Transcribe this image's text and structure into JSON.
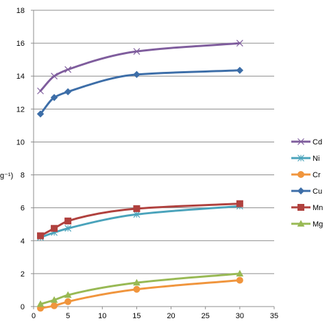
{
  "chart_data": {
    "type": "line",
    "x_ticks": [
      "0",
      "5",
      "10",
      "15",
      "20",
      "25",
      "30",
      "35"
    ],
    "y_ticks": [
      "0",
      "2",
      "4",
      "6",
      "8",
      "10",
      "12",
      "14",
      "16",
      "18"
    ],
    "xlim": [
      0,
      35
    ],
    "ylim": [
      0,
      18
    ],
    "ylabel_visible_fragment": "g⁻¹)",
    "grid": "horizontal",
    "legend_position": "right",
    "series": [
      {
        "name": "Cd",
        "color": "#7f5d9d",
        "marker": "x",
        "x": [
          1,
          3,
          5,
          15,
          30
        ],
        "y": [
          13.1,
          14.0,
          14.4,
          15.5,
          16.0
        ]
      },
      {
        "name": "Ni",
        "color": "#4aa3bb",
        "marker": "star",
        "x": [
          1,
          3,
          5,
          15,
          30
        ],
        "y": [
          4.2,
          4.5,
          4.75,
          5.6,
          6.1
        ]
      },
      {
        "name": "Cr",
        "color": "#f0953d",
        "marker": "circle",
        "x": [
          1,
          3,
          5,
          15,
          30
        ],
        "y": [
          -0.1,
          0.05,
          0.3,
          1.05,
          1.6
        ]
      },
      {
        "name": "Cu",
        "color": "#3d6ea8",
        "marker": "diamond",
        "x": [
          1,
          3,
          5,
          15,
          30
        ],
        "y": [
          11.7,
          12.7,
          13.05,
          14.1,
          14.35
        ]
      },
      {
        "name": "Mn",
        "color": "#b0413e",
        "marker": "square",
        "x": [
          1,
          3,
          5,
          15,
          30
        ],
        "y": [
          4.3,
          4.75,
          5.2,
          5.95,
          6.25
        ]
      },
      {
        "name": "Mg",
        "color": "#98b954",
        "marker": "triangle",
        "x": [
          1,
          3,
          5,
          15,
          30
        ],
        "y": [
          0.15,
          0.4,
          0.7,
          1.45,
          2.0
        ]
      }
    ]
  }
}
